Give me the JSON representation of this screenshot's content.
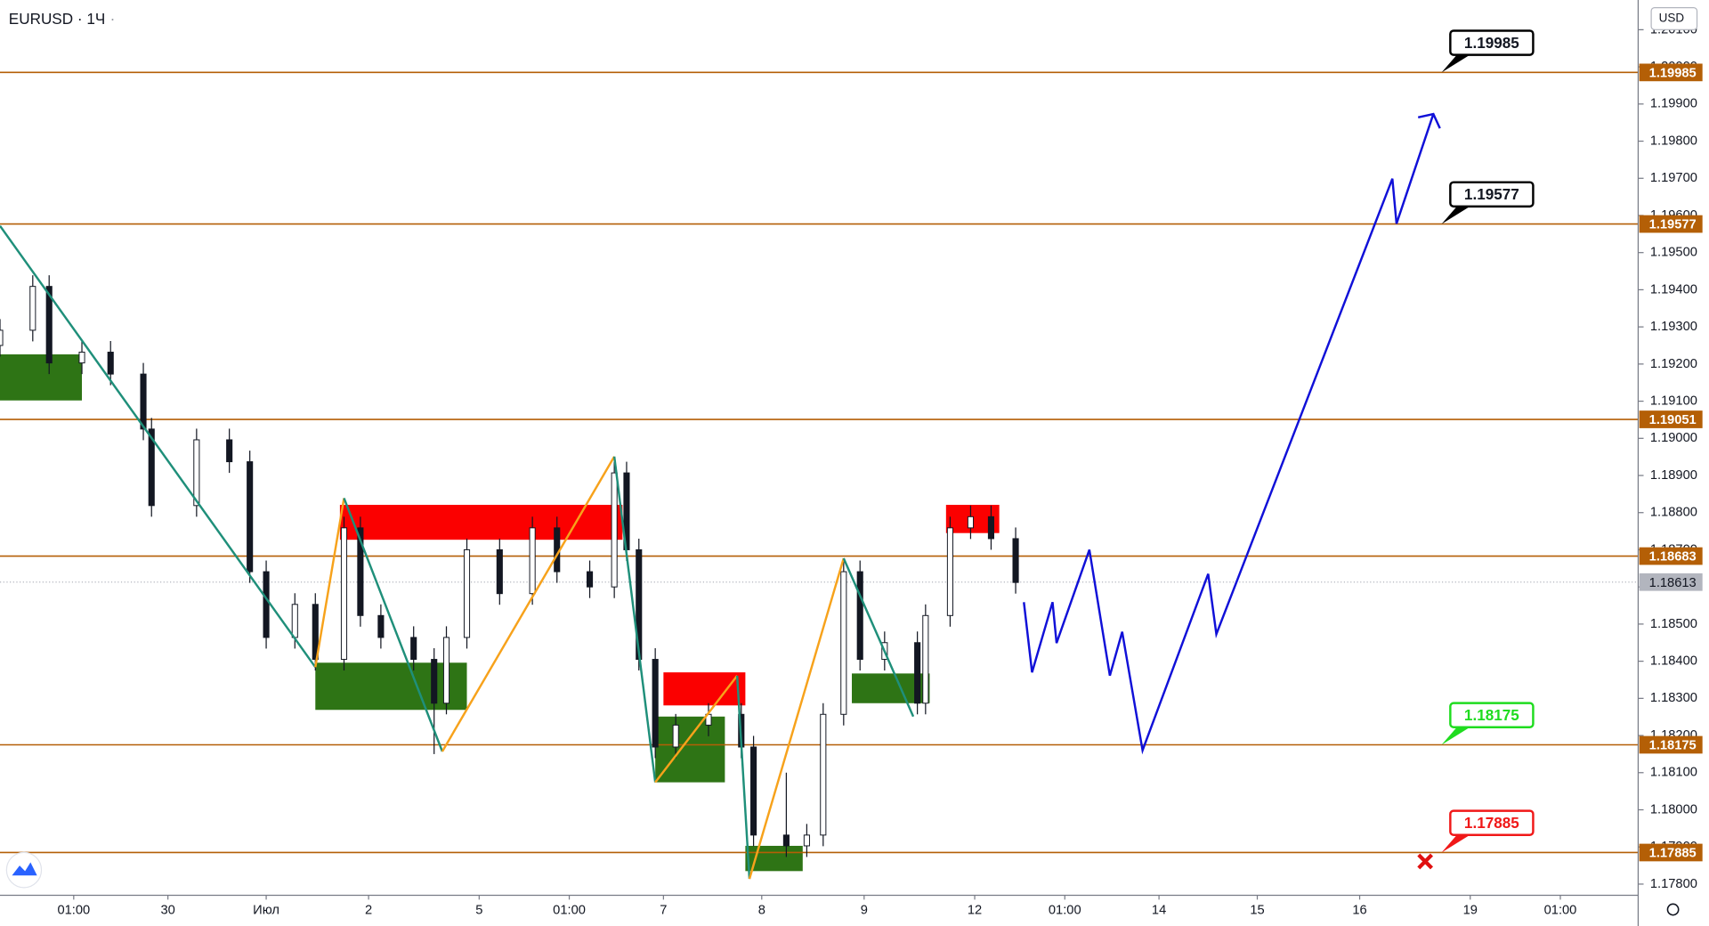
{
  "chart_data": {
    "type": "candlestick",
    "title": "EURUSD · 1Ч",
    "currency": "USD",
    "xlim": [
      0,
      400
    ],
    "ylim": [
      1.1777,
      1.2018
    ],
    "xticks": [
      {
        "value": 18,
        "label": "01:00"
      },
      {
        "value": 41,
        "label": "30"
      },
      {
        "value": 65,
        "label": "Июл"
      },
      {
        "value": 90,
        "label": "2"
      },
      {
        "value": 117,
        "label": "5"
      },
      {
        "value": 139,
        "label": "01:00"
      },
      {
        "value": 162,
        "label": "7"
      },
      {
        "value": 186,
        "label": "8"
      },
      {
        "value": 211,
        "label": "9"
      },
      {
        "value": 238,
        "label": "12"
      },
      {
        "value": 260,
        "label": "01:00"
      },
      {
        "value": 283,
        "label": "14"
      },
      {
        "value": 307,
        "label": "15"
      },
      {
        "value": 332,
        "label": "16"
      },
      {
        "value": 359,
        "label": "19"
      },
      {
        "value": 381,
        "label": "01:00"
      }
    ],
    "yticks": [
      {
        "value": 1.178,
        "label": "1.17800"
      },
      {
        "value": 1.179,
        "label": "1.17900"
      },
      {
        "value": 1.18,
        "label": "1.18000"
      },
      {
        "value": 1.181,
        "label": "1.18100"
      },
      {
        "value": 1.182,
        "label": "1.18200"
      },
      {
        "value": 1.183,
        "label": "1.18300"
      },
      {
        "value": 1.184,
        "label": "1.18400"
      },
      {
        "value": 1.185,
        "label": "1.18500"
      },
      {
        "value": 1.186,
        "label": "1.18600"
      },
      {
        "value": 1.187,
        "label": "1.18700"
      },
      {
        "value": 1.188,
        "label": "1.18800"
      },
      {
        "value": 1.189,
        "label": "1.18900"
      },
      {
        "value": 1.19,
        "label": "1.19000"
      },
      {
        "value": 1.191,
        "label": "1.19100"
      },
      {
        "value": 1.192,
        "label": "1.19200"
      },
      {
        "value": 1.193,
        "label": "1.19300"
      },
      {
        "value": 1.194,
        "label": "1.19400"
      },
      {
        "value": 1.195,
        "label": "1.19500"
      },
      {
        "value": 1.196,
        "label": "1.19600"
      },
      {
        "value": 1.197,
        "label": "1.19700"
      },
      {
        "value": 1.198,
        "label": "1.19800"
      },
      {
        "value": 1.199,
        "label": "1.19900"
      },
      {
        "value": 1.2,
        "label": "1.20000"
      },
      {
        "value": 1.201,
        "label": "1.20100"
      }
    ],
    "candles": {
      "up_color": "#131722",
      "down_color": "#131722",
      "x": [
        0,
        8,
        12,
        20,
        27,
        35,
        37,
        48,
        56,
        61,
        65,
        72,
        77,
        84,
        88,
        93,
        101,
        106,
        109,
        114,
        122,
        130,
        136,
        144,
        150,
        153,
        156,
        160,
        165,
        173,
        181,
        184,
        192,
        197,
        201,
        206,
        210,
        216,
        224,
        226,
        232,
        237,
        242,
        248
      ],
      "open": [
        1.1925,
        1.19291,
        1.19409,
        1.19203,
        1.19232,
        1.19173,
        1.19025,
        1.18819,
        1.18996,
        1.18937,
        1.18641,
        1.18464,
        1.18553,
        1.18405,
        1.18759,
        1.18523,
        1.18464,
        1.18405,
        1.18287,
        1.18464,
        1.187,
        1.18582,
        1.18759,
        1.18641,
        1.186,
        1.18907,
        1.187,
        1.18405,
        1.18169,
        1.18228,
        1.18257,
        1.18169,
        1.17932,
        1.17903,
        1.17932,
        1.18257,
        1.18641,
        1.18405,
        1.1845,
        1.18287,
        1.18523,
        1.18759,
        1.18789,
        1.1873
      ],
      "high": [
        1.19321,
        1.19439,
        1.19439,
        1.19262,
        1.19262,
        1.19203,
        1.19055,
        1.19026,
        1.19026,
        1.18967,
        1.18671,
        1.18583,
        1.18583,
        1.18789,
        1.18789,
        1.18553,
        1.18494,
        1.18435,
        1.18494,
        1.1873,
        1.1873,
        1.18789,
        1.18789,
        1.18671,
        1.18937,
        1.18937,
        1.1873,
        1.18435,
        1.18258,
        1.18287,
        1.18287,
        1.18199,
        1.181,
        1.17962,
        1.18287,
        1.18671,
        1.18671,
        1.1848,
        1.1848,
        1.18553,
        1.18789,
        1.18819,
        1.18819,
        1.1876
      ],
      "low": [
        1.1922,
        1.19261,
        1.19173,
        1.19173,
        1.19143,
        1.18995,
        1.18789,
        1.18789,
        1.18907,
        1.18611,
        1.18434,
        1.18434,
        1.18375,
        1.18375,
        1.18493,
        1.18434,
        1.18375,
        1.1815,
        1.18257,
        1.18434,
        1.18552,
        1.18552,
        1.18611,
        1.1857,
        1.1857,
        1.1867,
        1.18375,
        1.18139,
        1.18139,
        1.18198,
        1.18139,
        1.17902,
        1.17873,
        1.17873,
        1.17902,
        1.18227,
        1.18375,
        1.18375,
        1.18257,
        1.18257,
        1.18493,
        1.18729,
        1.187,
        1.18582
      ],
      "close": [
        1.19291,
        1.19409,
        1.19203,
        1.19232,
        1.19173,
        1.19025,
        1.18819,
        1.18996,
        1.18937,
        1.18641,
        1.18464,
        1.18553,
        1.18405,
        1.18759,
        1.18523,
        1.18464,
        1.18405,
        1.18287,
        1.18464,
        1.187,
        1.18582,
        1.18759,
        1.18641,
        1.186,
        1.18907,
        1.187,
        1.18405,
        1.18169,
        1.18228,
        1.18257,
        1.18169,
        1.17932,
        1.17903,
        1.17932,
        1.18257,
        1.18641,
        1.18405,
        1.1845,
        1.18287,
        1.18523,
        1.18759,
        1.18789,
        1.1873,
        1.18612
      ]
    },
    "levels": [
      {
        "value": 1.19985,
        "label": "1.19985",
        "callout_color": "#000000"
      },
      {
        "value": 1.19577,
        "label": "1.19577",
        "callout_color": "#000000"
      },
      {
        "value": 1.19051,
        "label": "1.19051"
      },
      {
        "value": 1.18683,
        "label": "1.18683"
      },
      {
        "value": 1.18175,
        "label": "1.18175",
        "callout_color": "#1fdc1f"
      },
      {
        "value": 1.17885,
        "label": "1.17885",
        "callout_color": "#f01818"
      }
    ],
    "level_color": "#b45f06",
    "callout_x": 352,
    "current_price": {
      "value": 1.18613,
      "label": "1.18613"
    },
    "zones": [
      {
        "color": "#2e7415",
        "x": [
          0,
          20
        ],
        "y": [
          1.19102,
          1.19226
        ]
      },
      {
        "color": "#fb0000",
        "x": [
          83,
          152
        ],
        "y": [
          1.18727,
          1.18821
        ]
      },
      {
        "color": "#2e7415",
        "x": [
          77,
          114
        ],
        "y": [
          1.18269,
          1.18396
        ]
      },
      {
        "color": "#fb0000",
        "x": [
          162,
          182
        ],
        "y": [
          1.18281,
          1.1837
        ]
      },
      {
        "color": "#2e7415",
        "x": [
          160,
          177
        ],
        "y": [
          1.18074,
          1.18251
        ]
      },
      {
        "color": "#2e7415",
        "x": [
          182,
          196
        ],
        "y": [
          1.17835,
          1.17903
        ]
      },
      {
        "color": "#2e7415",
        "x": [
          208,
          227
        ],
        "y": [
          1.18287,
          1.18367
        ]
      },
      {
        "color": "#fb0000",
        "x": [
          231,
          244
        ],
        "y": [
          1.18745,
          1.18821
        ]
      }
    ],
    "zigzag": {
      "colors": [
        "#1f8f7a",
        "#f7a21b"
      ],
      "x": [
        0,
        77,
        84,
        108,
        150,
        160,
        180,
        183,
        206,
        223
      ],
      "y": [
        1.19572,
        1.18384,
        1.18839,
        1.18157,
        1.18951,
        1.18074,
        1.18361,
        1.17814,
        1.18677,
        1.18251
      ]
    },
    "projection": {
      "color": "#1010d8",
      "x": [
        250,
        252,
        257,
        258,
        266,
        271,
        274,
        279,
        295,
        297,
        340,
        341,
        350
      ],
      "y": [
        1.18559,
        1.1837,
        1.18559,
        1.18449,
        1.187,
        1.18361,
        1.18479,
        1.1816,
        1.18635,
        1.18473,
        1.19699,
        1.19578,
        1.19873
      ]
    },
    "stop_mark": {
      "color": "#e01010",
      "x": 348,
      "y": 1.17861
    }
  }
}
